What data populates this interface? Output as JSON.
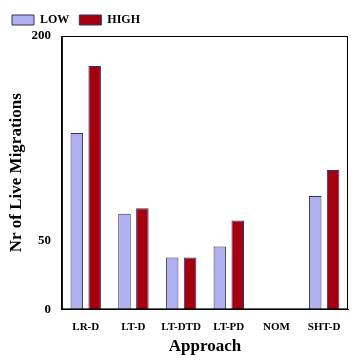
{
  "chart_data": {
    "type": "bar",
    "x_label": "Approach",
    "y_label": "Nr of Live Migrations",
    "categories": [
      "LR-D",
      "LT-D",
      "LT-DTD",
      "LT-PD",
      "NOM",
      "SHT-D"
    ],
    "series": [
      {
        "name": "LOW",
        "color": "#b0b0ee",
        "values": [
          129,
          70,
          38,
          46,
          0,
          83
        ]
      },
      {
        "name": "HIGH",
        "color": "#a50010",
        "values": [
          178,
          74,
          38,
          65,
          0,
          102
        ]
      }
    ],
    "ylim": [
      0,
      200
    ],
    "yticks": [
      0,
      50,
      200
    ],
    "grid": false,
    "legend": "upper left"
  }
}
